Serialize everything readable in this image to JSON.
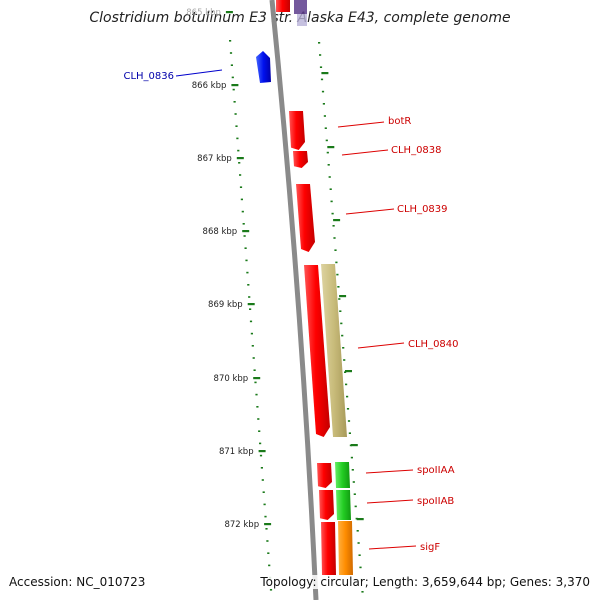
{
  "title": "Clostridium botulinum E3 str. Alaska E43, complete genome",
  "accession_label": "Accession: NC_010723",
  "topology_label": "Topology: circular; Length: 3,659,644 bp; Genes: 3,370",
  "ruler": {
    "ticks": [
      "865 kbp",
      "866 kbp",
      "867 kbp",
      "868 kbp",
      "869 kbp",
      "870 kbp",
      "871 kbp",
      "872 kbp"
    ],
    "color": "#1a7a1a"
  },
  "genes": [
    {
      "label": "CLH_0836",
      "color": "#0000ee",
      "strand": "-"
    },
    {
      "label": "botR",
      "color": "#ee0000",
      "strand": "+"
    },
    {
      "label": "CLH_0838",
      "color": "#ee0000",
      "strand": "+"
    },
    {
      "label": "CLH_0839",
      "color": "#ee0000",
      "strand": "+"
    },
    {
      "label": "CLH_0840",
      "color": "#ee0000",
      "strand": "+"
    },
    {
      "label": "spoIIAA",
      "color": "#ee0000",
      "strand": "+"
    },
    {
      "label": "spoIIAB",
      "color": "#ee0000",
      "strand": "+"
    },
    {
      "label": "sigF",
      "color": "#ee0000",
      "strand": "+"
    }
  ],
  "colors": {
    "backbone": "#8a8a8a",
    "cds_forward": "#ee1111",
    "cds_reverse": "#1a1aee",
    "feature_khaki": "#c8bb7a",
    "feature_green": "#33cc33",
    "feature_orange": "#ff8c00",
    "label_red": "#cc0000",
    "label_blue": "#0000aa"
  }
}
